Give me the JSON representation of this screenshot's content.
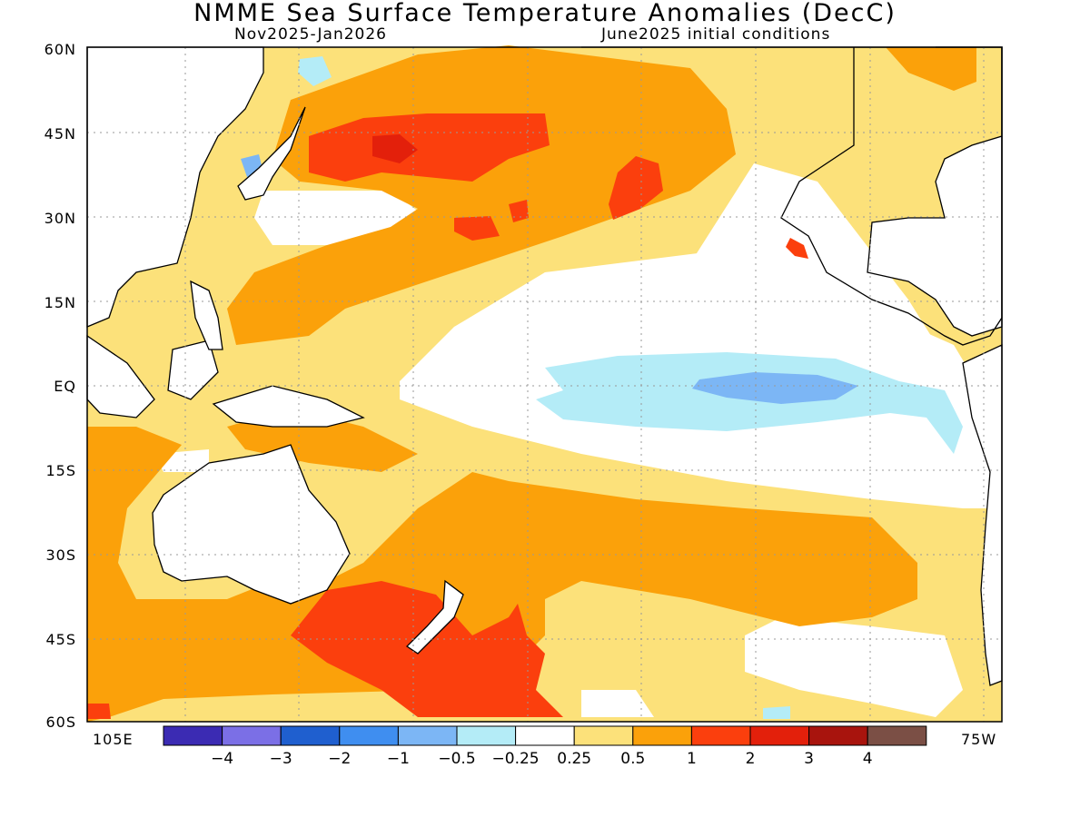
{
  "header": {
    "title": "NMME Sea Surface Temperature Anomalies (DecC)",
    "subtitle_left": "Nov2025-Jan2026",
    "subtitle_right": "June2025 initial conditions"
  },
  "axes": {
    "lat_labels": [
      "60N",
      "45N",
      "30N",
      "15N",
      "EQ",
      "15S",
      "30S",
      "45S",
      "60S"
    ],
    "lon_left": "105E",
    "lon_right": "75W"
  },
  "colorbar": {
    "colors": [
      "#3b2bb3",
      "#7b6fe6",
      "#1f5fcf",
      "#3f8ef0",
      "#7cb6f5",
      "#b4ecf7",
      "#ffffff",
      "#fce17a",
      "#fba10a",
      "#fb3f0d",
      "#e3200b",
      "#a8140d",
      "#7b4f45"
    ],
    "tick_labels": [
      "−4",
      "−3",
      "−2",
      "−1",
      "−0.5",
      "−0.25",
      "0.25",
      "0.5",
      "1",
      "2",
      "3",
      "4"
    ]
  },
  "anomaly_colors": {
    "land": "#ffffff",
    "coast": "#000000",
    "neutral": "#ffffff",
    "weak_warm": "#fce17a",
    "moderate_warm": "#fba10a",
    "strong_warm": "#fb3f0d",
    "very_strong_warm": "#e3200b",
    "weak_cool": "#b4ecf7",
    "moderate_cool": "#7cb6f5",
    "strong_cool": "#3f8ef0"
  }
}
